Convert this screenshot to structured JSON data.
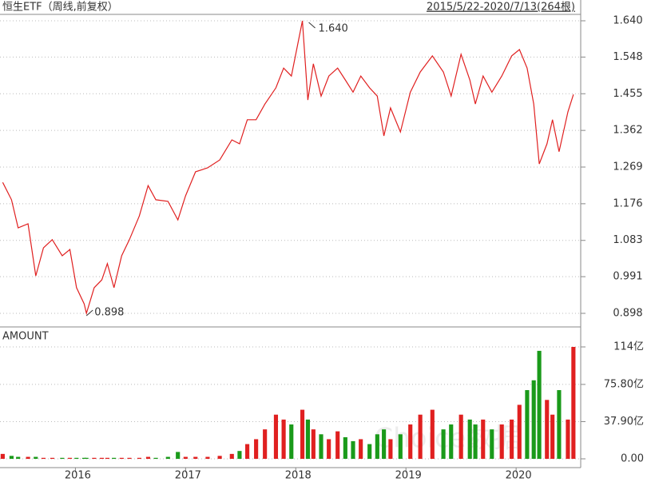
{
  "chart_data": {
    "type": "stock",
    "title": "恒生ETF（周线,前复权）",
    "range_label": "2015/5/22-2020/7/13(264根)",
    "volume_title": "AMOUNT",
    "watermark": "Choice数据",
    "max_label": "1.640",
    "min_label": "0.898",
    "x": [
      2015.34,
      2015.42,
      2015.48,
      2015.57,
      2015.64,
      2015.71,
      2015.79,
      2015.88,
      2015.95,
      2016.01,
      2016.08,
      2016.1,
      2016.17,
      2016.24,
      2016.29,
      2016.35,
      2016.42,
      2016.49,
      2016.58,
      2016.66,
      2016.73,
      2016.84,
      2016.93,
      2017.0,
      2017.09,
      2017.2,
      2017.31,
      2017.42,
      2017.49,
      2017.56,
      2017.64,
      2017.72,
      2017.82,
      2017.89,
      2017.96,
      2018.06,
      2018.11,
      2018.16,
      2018.23,
      2018.3,
      2018.38,
      2018.45,
      2018.52,
      2018.59,
      2018.67,
      2018.74,
      2018.8,
      2018.86,
      2018.95,
      2019.04,
      2019.13,
      2019.24,
      2019.34,
      2019.41,
      2019.5,
      2019.58,
      2019.63,
      2019.7,
      2019.78,
      2019.87,
      2019.96,
      2020.03,
      2020.1,
      2020.16,
      2020.21,
      2020.28,
      2020.33,
      2020.39,
      2020.47,
      2020.52
    ],
    "series": [
      {
        "name": "恒生ETF",
        "color": "#e02020",
        "values": [
          1.23,
          1.186,
          1.115,
          1.125,
          0.993,
          1.064,
          1.085,
          1.044,
          1.06,
          0.963,
          0.922,
          0.898,
          0.963,
          0.983,
          1.024,
          0.963,
          1.044,
          1.085,
          1.145,
          1.222,
          1.186,
          1.182,
          1.135,
          1.196,
          1.257,
          1.267,
          1.287,
          1.338,
          1.328,
          1.389,
          1.389,
          1.429,
          1.47,
          1.52,
          1.5,
          1.64,
          1.439,
          1.531,
          1.449,
          1.5,
          1.52,
          1.49,
          1.459,
          1.5,
          1.47,
          1.449,
          1.348,
          1.419,
          1.358,
          1.459,
          1.51,
          1.551,
          1.51,
          1.449,
          1.555,
          1.49,
          1.429,
          1.5,
          1.459,
          1.5,
          1.551,
          1.567,
          1.52,
          1.429,
          1.277,
          1.328,
          1.389,
          1.308,
          1.409,
          1.453
        ]
      }
    ],
    "volume": {
      "up_color": "#e02020",
      "down_color": "#1a9a1a",
      "values": [
        5,
        3,
        2,
        2,
        2,
        1,
        1,
        1,
        1,
        1,
        1,
        1,
        1,
        1,
        1,
        1,
        1,
        1,
        1,
        2,
        1,
        2,
        7,
        2,
        2,
        2,
        3,
        5,
        8,
        15,
        20,
        30,
        45,
        40,
        35,
        50,
        40,
        30,
        25,
        20,
        28,
        22,
        18,
        20,
        15,
        25,
        30,
        20,
        25,
        35,
        45,
        50,
        30,
        35,
        45,
        40,
        35,
        40,
        30,
        35,
        40,
        55,
        70,
        80,
        110,
        60,
        45,
        70,
        40,
        114
      ]
    },
    "xlim": [
      2015.33,
      2020.55
    ],
    "xticks": [
      2016,
      2017,
      2018,
      2019,
      2020
    ],
    "ylim": [
      0.898,
      1.64
    ],
    "yticks": [
      {
        "value": 1.64,
        "label": "1.640"
      },
      1.548,
      1.455,
      1.362,
      1.269,
      1.176,
      1.083,
      0.991,
      0.898
    ],
    "y2lim": [
      0,
      114
    ],
    "y2ticks": [
      {
        "value": 0,
        "label": "0.00"
      },
      {
        "value": 37.9,
        "label": "37.90亿"
      },
      {
        "value": 75.8,
        "label": "75.80亿"
      },
      {
        "value": 114,
        "label": "114亿"
      }
    ],
    "grid": true
  }
}
